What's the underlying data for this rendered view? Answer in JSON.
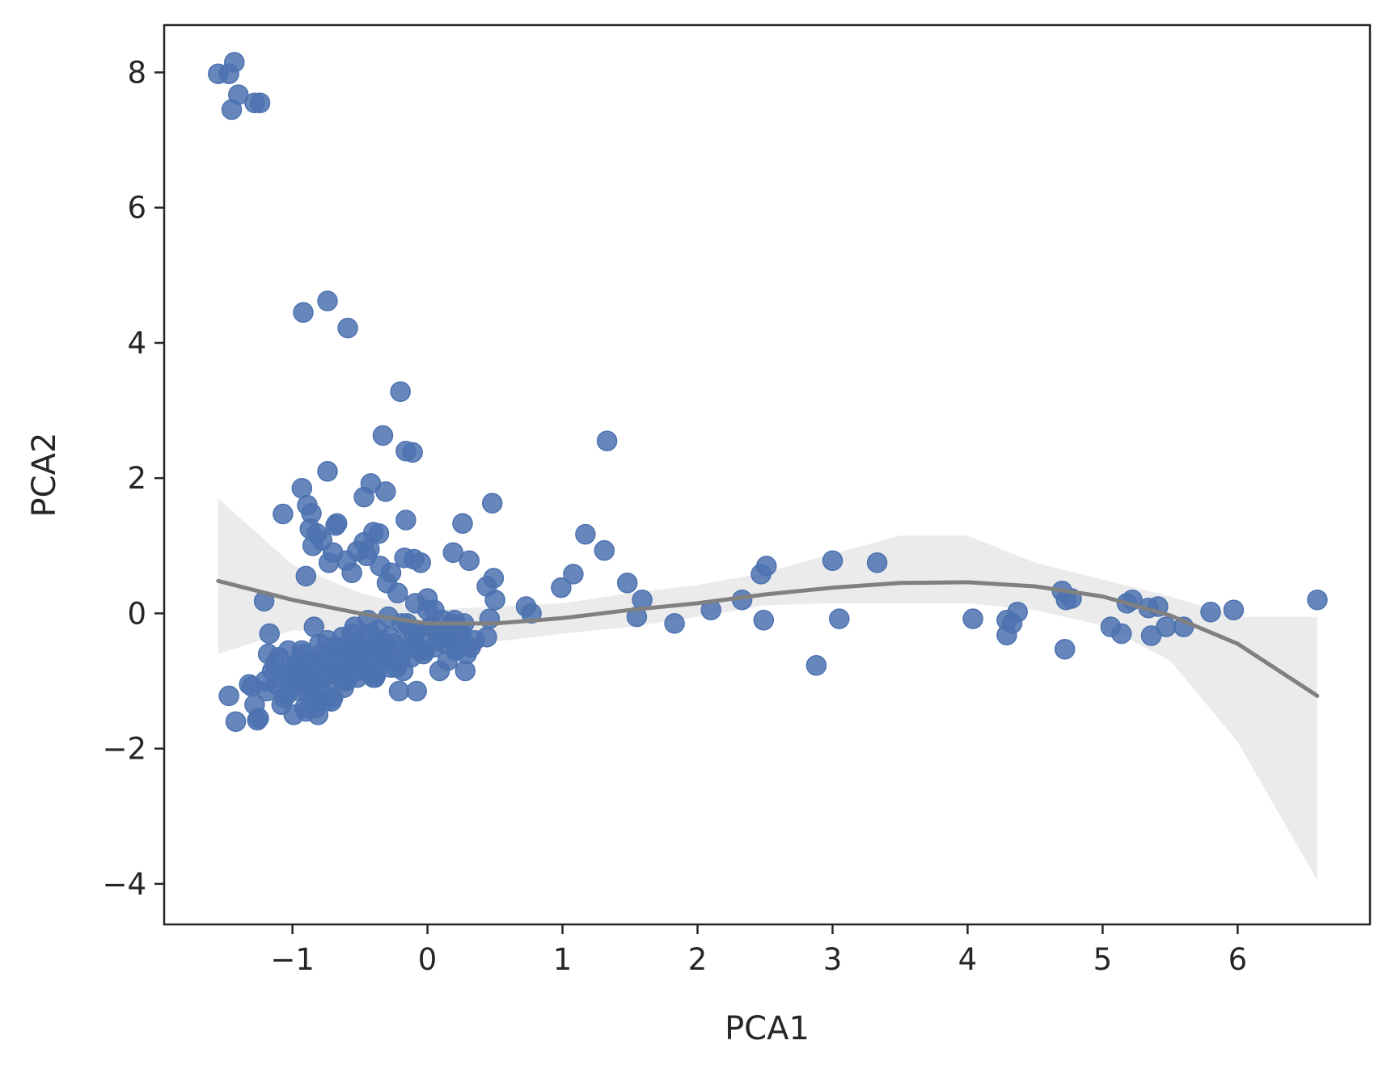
{
  "chart_data": {
    "type": "scatter",
    "xlabel": "PCA1",
    "ylabel": "PCA2",
    "xlim": [
      -1.95,
      6.98
    ],
    "ylim": [
      -4.6,
      8.7
    ],
    "xticks": [
      -1,
      0,
      1,
      2,
      3,
      4,
      5,
      6
    ],
    "xtick_labels": [
      "−1",
      "0",
      "1",
      "2",
      "3",
      "4",
      "5",
      "6"
    ],
    "yticks": [
      -4,
      -2,
      0,
      2,
      4,
      6,
      8
    ],
    "ytick_labels": [
      "−4",
      "−2",
      "0",
      "2",
      "4",
      "6",
      "8"
    ],
    "grid": false,
    "colors": {
      "points": "#4c72b0",
      "fit_line": "#808080",
      "confidence_band": "#ebebeb",
      "axes": "#262626"
    },
    "series": [
      {
        "kind": "points",
        "x": [
          -1.55,
          -1.47,
          -1.43,
          -1.4,
          -1.45,
          -1.28,
          -1.24,
          -0.92,
          -0.74,
          -0.59,
          -0.2,
          -0.33,
          -0.16,
          -0.11,
          -0.74,
          -0.93,
          -0.42,
          -0.47,
          -0.31,
          -0.89,
          -0.86,
          -0.67,
          -0.68,
          -1.07,
          -0.16,
          -0.4,
          -0.36,
          -0.17,
          0.26,
          0.48,
          1.33,
          1.17,
          1.31,
          1.08,
          0.99,
          0.73,
          0.77,
          1.48,
          1.59,
          1.55,
          1.83,
          2.1,
          2.33,
          2.47,
          2.49,
          2.51,
          2.88,
          3.0,
          3.05,
          3.33,
          4.04,
          4.29,
          4.29,
          4.33,
          4.37,
          4.7,
          4.73,
          4.77,
          4.72,
          5.06,
          5.14,
          5.18,
          5.22,
          5.34,
          5.36,
          5.41,
          5.47,
          5.6,
          5.8,
          5.97,
          6.59,
          -0.9,
          -0.87,
          -0.85,
          -0.82,
          -0.78,
          -0.73,
          -0.7,
          -0.6,
          -0.56,
          -0.52,
          -0.47,
          -0.45,
          -0.43,
          -0.35,
          -0.3,
          -0.27,
          -0.22,
          -0.1,
          -0.05,
          0.0,
          0.19,
          0.31,
          0.44,
          0.49,
          0.5,
          0.46,
          -0.09,
          0.05,
          -1.47,
          -1.42,
          -1.3,
          -1.26,
          -1.25,
          -1.2,
          -1.18,
          -1.12,
          -1.08,
          -1.02,
          -0.99,
          -0.95,
          -0.94,
          -0.9,
          -0.88,
          -0.86,
          -0.83,
          -0.8,
          -0.78,
          -0.76,
          -0.73,
          -0.7,
          -0.68,
          -0.64,
          -0.61,
          -0.58,
          -0.55,
          -0.52,
          -0.5,
          -0.46,
          -0.43,
          -0.41,
          -0.38,
          -0.35,
          -0.32,
          -0.3,
          -0.27,
          -0.24,
          -0.21,
          -0.18,
          -0.14,
          -0.12,
          -0.08,
          -0.05,
          -0.02,
          0.02,
          0.05,
          0.09,
          0.12,
          0.15,
          0.18,
          0.21,
          0.25,
          0.28,
          0.32,
          0.44,
          -1.21,
          -1.17,
          -1.15,
          -1.1,
          -1.06,
          -1.03,
          -1.0,
          -0.97,
          -0.93,
          -0.91,
          -0.89,
          -0.87,
          -0.84,
          -0.81,
          -0.79,
          -0.77,
          -0.74,
          -0.71,
          -0.69,
          -0.66,
          -0.63,
          -0.6,
          -0.57,
          -0.54,
          -0.51,
          -0.48,
          -0.44,
          -0.4,
          -0.37,
          -0.34,
          -0.29,
          -0.25,
          -0.2,
          -0.15,
          -0.1,
          -0.06,
          0.0,
          0.07,
          0.13,
          0.2,
          0.24,
          0.29,
          -1.32,
          -1.28,
          -1.19,
          -1.13,
          -1.09,
          -1.04,
          -0.98,
          -0.96,
          -0.92,
          -0.86,
          -0.84,
          -0.82,
          -0.8,
          -0.75,
          -0.72,
          -0.67,
          -0.65,
          -0.62,
          -0.59,
          -0.56,
          -0.53,
          -0.49,
          -0.45,
          -0.42,
          -0.39,
          -0.36,
          -0.33,
          -0.28,
          -0.23,
          -0.19,
          -0.13,
          -0.08,
          -0.03,
          0.03,
          0.08,
          0.11,
          0.16,
          0.22,
          0.27,
          0.35
        ],
        "y": [
          7.98,
          7.98,
          8.15,
          7.67,
          7.45,
          7.55,
          7.55,
          4.45,
          4.62,
          4.22,
          3.28,
          2.63,
          2.4,
          2.38,
          2.1,
          1.85,
          1.92,
          1.72,
          1.8,
          1.6,
          1.48,
          1.33,
          1.3,
          1.47,
          1.38,
          1.2,
          1.18,
          0.82,
          1.33,
          1.63,
          2.55,
          1.17,
          0.93,
          0.58,
          0.38,
          0.1,
          0.0,
          0.45,
          0.2,
          -0.05,
          -0.15,
          0.05,
          0.2,
          0.58,
          -0.1,
          0.7,
          -0.77,
          0.78,
          -0.08,
          0.75,
          -0.08,
          -0.1,
          -0.32,
          -0.15,
          0.02,
          0.33,
          0.2,
          0.22,
          -0.53,
          -0.2,
          -0.3,
          0.15,
          0.2,
          0.08,
          -0.33,
          0.1,
          -0.2,
          -0.2,
          0.02,
          0.05,
          0.2,
          0.55,
          1.25,
          1.0,
          1.18,
          1.08,
          0.75,
          0.9,
          0.78,
          0.6,
          0.92,
          1.05,
          0.85,
          0.95,
          0.7,
          0.45,
          0.6,
          0.3,
          0.8,
          0.75,
          0.22,
          0.9,
          0.78,
          0.4,
          0.52,
          0.2,
          -0.08,
          0.15,
          0.05,
          -1.22,
          -1.6,
          -1.08,
          -1.58,
          -1.55,
          -1.0,
          -0.6,
          -1.05,
          -1.35,
          -0.9,
          -1.5,
          -1.15,
          -0.8,
          -1.45,
          -1.2,
          -0.95,
          -1.4,
          -1.1,
          -0.7,
          -1.3,
          -0.9,
          -1.25,
          -0.65,
          -0.85,
          -1.0,
          -0.6,
          -0.75,
          -0.95,
          -0.5,
          -0.85,
          -0.55,
          -0.65,
          -0.9,
          -0.4,
          -0.7,
          -0.5,
          -0.8,
          -0.6,
          -1.15,
          -0.85,
          -0.4,
          -0.65,
          -1.15,
          -0.3,
          -0.55,
          -0.2,
          -0.5,
          -0.85,
          -0.35,
          -0.7,
          -0.15,
          -0.55,
          -0.3,
          -0.85,
          -0.5,
          -0.35,
          0.18,
          -0.3,
          -0.85,
          -0.65,
          -1.25,
          -0.55,
          -1.05,
          -0.75,
          -0.55,
          -1.4,
          -0.95,
          -0.7,
          -0.2,
          -1.5,
          -0.6,
          -0.95,
          -0.4,
          -1.3,
          -0.5,
          -0.85,
          -0.35,
          -1.0,
          -0.55,
          -0.2,
          -0.75,
          -0.4,
          -0.1,
          -0.95,
          -0.25,
          -0.55,
          -0.05,
          -0.45,
          -0.7,
          -0.15,
          -0.35,
          -0.55,
          0.05,
          -0.25,
          -0.45,
          -0.1,
          -0.3,
          -0.6,
          -1.05,
          -1.35,
          -1.15,
          -0.75,
          -0.95,
          -1.2,
          -0.8,
          -1.0,
          -0.6,
          -1.1,
          -0.8,
          -1.3,
          -0.45,
          -1.05,
          -0.75,
          -0.9,
          -0.5,
          -1.1,
          -0.65,
          -0.3,
          -0.85,
          -0.55,
          -0.7,
          -0.3,
          -0.95,
          -0.5,
          -0.65,
          -0.35,
          -0.8,
          -0.15,
          -0.5,
          -0.25,
          -0.6,
          -0.2,
          -0.4,
          -0.1,
          -0.25,
          -0.5,
          -0.15,
          -0.4
        ]
      },
      {
        "kind": "fit_line",
        "x": [
          -1.55,
          -1.0,
          -0.5,
          0.0,
          0.5,
          1.0,
          1.5,
          2.0,
          2.5,
          3.0,
          3.5,
          4.0,
          4.5,
          5.0,
          5.5,
          6.0,
          6.59
        ],
        "y": [
          0.48,
          0.2,
          0.0,
          -0.15,
          -0.15,
          -0.07,
          0.05,
          0.15,
          0.28,
          0.38,
          0.45,
          0.46,
          0.4,
          0.25,
          -0.03,
          -0.45,
          -1.22
        ]
      },
      {
        "kind": "confidence_band",
        "x": [
          -1.55,
          -1.0,
          -0.5,
          0.0,
          0.5,
          1.0,
          1.5,
          2.0,
          2.5,
          3.0,
          3.5,
          4.0,
          4.5,
          5.0,
          5.5,
          6.0,
          6.59
        ],
        "lower": [
          -0.6,
          -0.25,
          -0.3,
          -0.35,
          -0.42,
          -0.3,
          -0.2,
          -0.05,
          0.12,
          0.15,
          0.15,
          0.15,
          0.05,
          -0.18,
          -0.7,
          -1.9,
          -3.95
        ],
        "upper": [
          1.7,
          0.72,
          0.3,
          0.05,
          0.1,
          0.15,
          0.3,
          0.42,
          0.6,
          0.88,
          1.15,
          1.15,
          0.75,
          0.5,
          0.25,
          -0.05,
          -0.05
        ]
      }
    ]
  }
}
